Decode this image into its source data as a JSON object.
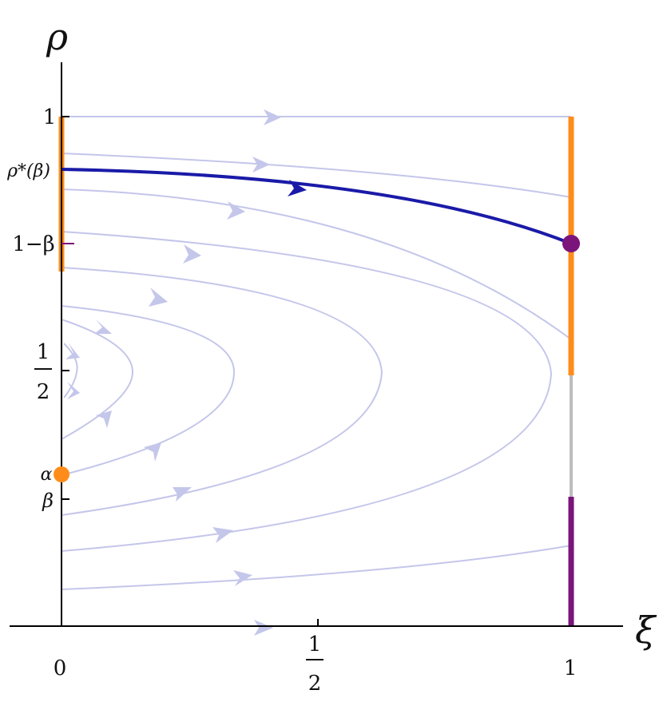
{
  "axes": {
    "x_label": "ξ",
    "y_label": "ρ",
    "x_ticks": {
      "zero": "0",
      "half_num": "1",
      "half_den": "2",
      "one": "1"
    },
    "y_ticks": {
      "one": "1",
      "rho_star": "ρ*(β)",
      "one_minus_beta": "1−β",
      "half_num": "1",
      "half_den": "2",
      "alpha": "α",
      "beta": "β"
    }
  },
  "colors": {
    "flow": "#c4c6ea",
    "highlight": "#1a1aa8",
    "orange": "#ff8c1a",
    "purple": "#7b147b",
    "gray": "#bdbdbd",
    "axis": "#000000"
  },
  "chart_data": {
    "type": "phase-portrait",
    "x_range": [
      0,
      1
    ],
    "y_range": [
      0,
      1
    ],
    "parameters": {
      "alpha": 0.3,
      "beta": 0.25,
      "one_minus_beta": 0.75,
      "rho_star_beta": 0.894
    },
    "highlighted_trajectory": {
      "from": [
        0,
        0.894
      ],
      "to": [
        1,
        0.75
      ]
    },
    "marked_points": [
      {
        "name": "alpha-point",
        "x": 0,
        "y": 0.3,
        "color": "orange"
      },
      {
        "name": "end-point",
        "x": 1,
        "y": 0.75,
        "color": "purple"
      }
    ],
    "boundary_segments": [
      {
        "name": "left-orange",
        "x": 0,
        "y": [
          0.69,
          1.0
        ],
        "color": "orange"
      },
      {
        "name": "right-orange",
        "x": 1,
        "y": [
          0.49,
          1.0
        ],
        "color": "orange"
      },
      {
        "name": "right-gray",
        "x": 1,
        "y": [
          0.25,
          0.49
        ],
        "color": "gray"
      },
      {
        "name": "right-purple",
        "x": 1,
        "y": [
          0.0,
          0.25
        ],
        "color": "purple"
      }
    ]
  }
}
